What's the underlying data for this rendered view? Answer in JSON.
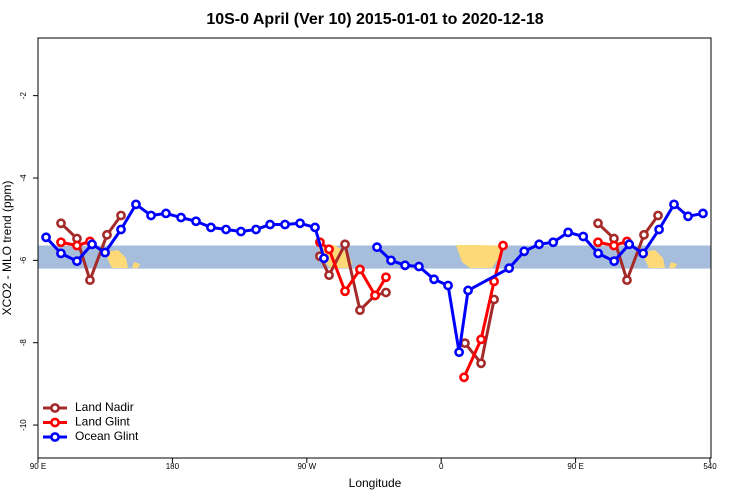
{
  "chart_data": {
    "type": "line",
    "title": "10S-0 April (Ver 10)   2015-01-01 to 2020-12-18",
    "x_label": "Longitude",
    "y_label": "XCO2 - MLO trend (ppm)",
    "xlim": [
      90,
      540
    ],
    "ylim": [
      -10.8,
      -0.6
    ],
    "xticks": [
      {
        "value": 90,
        "label": "90 E"
      },
      180,
      {
        "value": 270,
        "label": "90 W"
      },
      {
        "value": 360,
        "label": "0"
      },
      {
        "value": 450,
        "label": "90 E"
      },
      540
    ],
    "yticks": [
      -10,
      -8,
      -6,
      -4,
      -2
    ],
    "band": [
      -6.2,
      -5.64
    ],
    "band_color": "#a6bddb",
    "legend": "bottom-left",
    "series": [
      {
        "name": "Land Nadir",
        "color": "#a52a2a",
        "x": [
          105.4,
          116.1,
          124.8,
          136.2,
          145.6,
          null,
          278.8,
          284.9,
          295.6,
          305.6,
          315.7,
          323.0,
          null,
          375.9,
          386.7,
          395.4,
          null,
          465.0,
          475.7,
          484.4,
          495.8,
          505.2
        ],
        "values": [
          -5.1,
          -5.47,
          -6.48,
          -5.38,
          -4.91,
          null,
          -5.9,
          -6.36,
          -5.61,
          -7.21,
          -6.85,
          -6.78,
          null,
          -8.01,
          -8.5,
          -6.95,
          null,
          -5.1,
          -5.47,
          -6.48,
          -5.38,
          -4.91
        ]
      },
      {
        "name": "Land Glint",
        "color": "#ff0000",
        "x": [
          105.4,
          116.1,
          124.8,
          null,
          278.8,
          284.9,
          295.6,
          305.6,
          315.7,
          323.0,
          null,
          375.3,
          386.7,
          395.4,
          401.4,
          null,
          465.0,
          475.7,
          484.4
        ],
        "values": [
          -5.56,
          -5.64,
          -5.54,
          null,
          -5.56,
          -5.73,
          -6.75,
          -6.22,
          -6.85,
          -6.41,
          null,
          -8.84,
          -7.92,
          -6.51,
          -5.64,
          null,
          -5.56,
          -5.64,
          -5.54
        ]
      },
      {
        "name": "Ocean Glint",
        "color": "#0000ff",
        "x": [
          95.4,
          105.4,
          116.1,
          126.2,
          134.9,
          145.6,
          155.6,
          165.7,
          175.7,
          185.8,
          195.8,
          205.8,
          215.9,
          225.9,
          236.0,
          245.4,
          255.4,
          265.5,
          275.5,
          281.5,
          null,
          317.0,
          326.4,
          335.8,
          345.1,
          355.2,
          364.6,
          372.0,
          378.0,
          405.5,
          415.6,
          425.6,
          435.0,
          445.0,
          455.1,
          465.1,
          475.8,
          485.9,
          495.2,
          505.9,
          515.9,
          525.3,
          535.3
        ],
        "values": [
          -5.44,
          -5.83,
          -6.02,
          -5.61,
          -5.81,
          -5.25,
          -4.64,
          -4.91,
          -4.86,
          -4.96,
          -5.05,
          -5.2,
          -5.25,
          -5.3,
          -5.25,
          -5.13,
          -5.13,
          -5.1,
          -5.2,
          -5.95,
          null,
          -5.68,
          -6.0,
          -6.12,
          -6.15,
          -6.46,
          -6.61,
          -8.23,
          -6.73,
          -6.19,
          -5.78,
          -5.61,
          -5.56,
          -5.32,
          -5.42,
          -5.83,
          -6.02,
          -5.61,
          -5.83,
          -5.25,
          -4.64,
          -4.93,
          -4.86
        ]
      }
    ]
  }
}
